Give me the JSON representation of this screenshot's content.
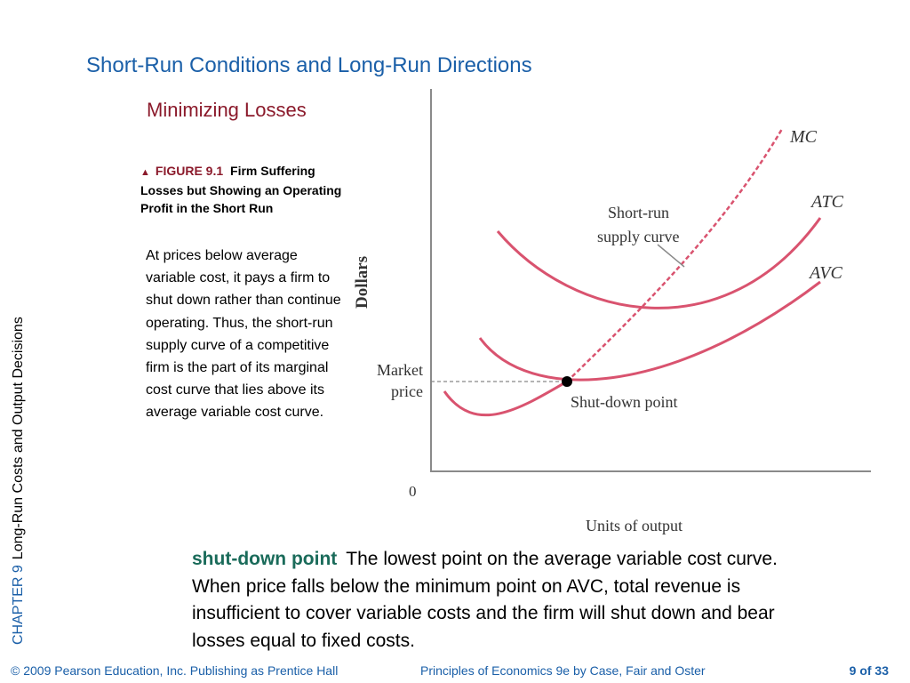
{
  "side_label": {
    "chapter": "CHAPTER 9",
    "chapter_title": "Long-Run Costs and Output Decisions"
  },
  "title": "Short-Run Conditions and Long-Run Directions",
  "subtitle": "Minimizing Losses",
  "figure": {
    "number": "FIGURE 9.1",
    "caption": "Firm Suffering Losses but Showing an Operating Profit in the Short Run",
    "body": "At prices below average variable cost, it pays a firm to shut down rather than continue operating. Thus, the short-run supply curve of a competitive firm is the part of its marginal cost curve that lies above its average variable cost curve."
  },
  "diagram": {
    "y_axis_label": "Dollars",
    "x_axis_label": "Units of output",
    "origin_label": "0",
    "market_price_label_1": "Market",
    "market_price_label_2": "price",
    "curve_mc": "MC",
    "curve_atc": "ATC",
    "curve_avc": "AVC",
    "supply_label_1": "Short-run",
    "supply_label_2": "supply curve",
    "shutdown_label": "Shut-down point",
    "colors": {
      "curve": "#d9536f",
      "axis": "#8a8a8a",
      "dashed": "#888888"
    }
  },
  "definition": {
    "term": "shut-down point",
    "text": "The lowest point on the average variable cost curve. When price falls below the minimum point on AVC, total revenue is insufficient to cover variable costs and the firm will shut down and bear losses equal to fixed costs."
  },
  "footer": {
    "copyright": "© 2009 Pearson Education, Inc. Publishing as Prentice Hall",
    "book": "Principles of Economics 9e by Case, Fair and Oster",
    "page_current": "9",
    "page_of": "of",
    "page_total": "33"
  }
}
